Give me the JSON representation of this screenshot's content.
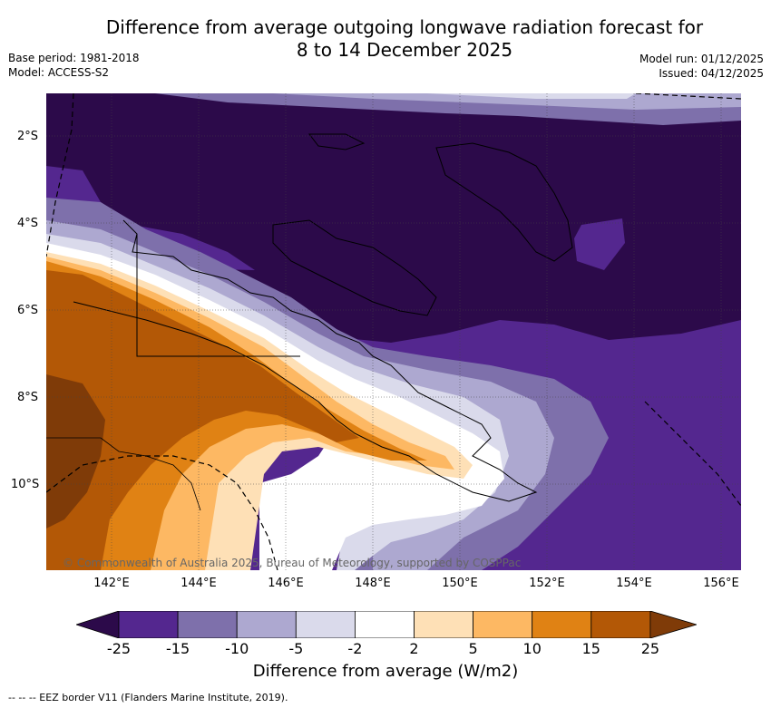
{
  "title_line1": "Difference from average outgoing longwave radiation forecast for",
  "title_line2": "8 to 14 December 2025",
  "base_period": "Base period: 1981-2018",
  "model": "Model: ACCESS-S2",
  "model_run": "Model run: 01/12/2025",
  "issued": "Issued: 04/12/2025",
  "lat_labels": [
    "2°S",
    "4°S",
    "6°S",
    "8°S",
    "10°S"
  ],
  "lon_labels": [
    "142°E",
    "144°E",
    "146°E",
    "148°E",
    "150°E",
    "152°E",
    "154°E",
    "156°E"
  ],
  "copyright": "© Commonwealth of Australia 2025, Bureau of Meteorology, supported by COSPPac",
  "colorbar": {
    "ticks": [
      "-25",
      "-15",
      "-10",
      "-5",
      "-2",
      "2",
      "5",
      "10",
      "15",
      "25"
    ],
    "colors": [
      "#2c0a4a",
      "#54278f",
      "#7e70ab",
      "#ada8d0",
      "#dadaeb",
      "#ffffff",
      "#fee0b6",
      "#fdb863",
      "#e08214",
      "#b35806",
      "#7f3b08"
    ],
    "label": "Difference from average (W/m2)"
  },
  "footer": "-- -- -- EEZ border V11 (Flanders Marine Institute, 2019)."
}
